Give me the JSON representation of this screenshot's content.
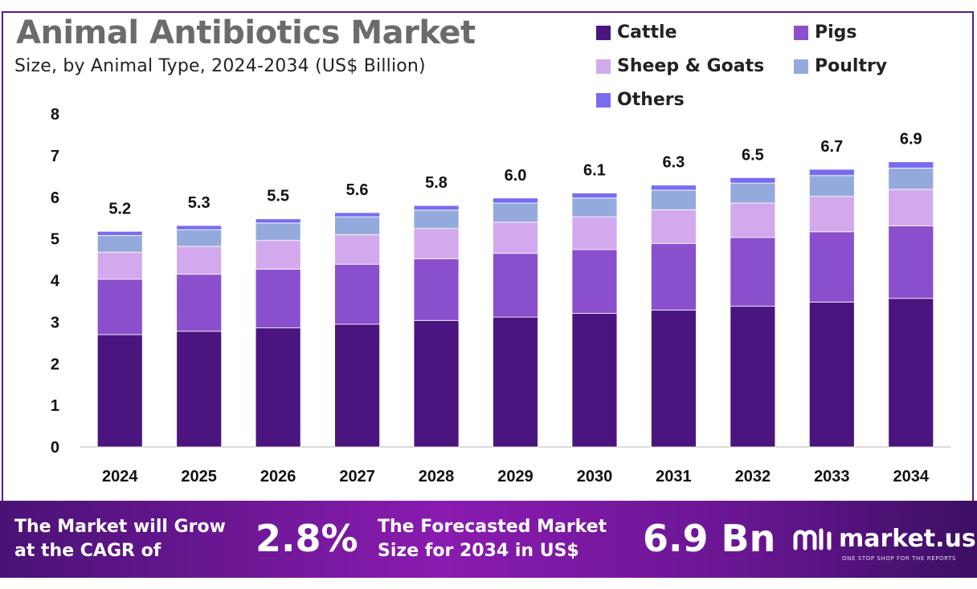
{
  "title": "Animal Antibiotics Market",
  "subtitle": "Size, by Animal Type, 2024-2034 (US$ Billion)",
  "colors": {
    "cattle": "#4b157f",
    "pigs": "#8a4fcc",
    "sheep_goats": "#d3a9ee",
    "poultry": "#94aadc",
    "others": "#7a6cf0",
    "footer_dark": "#4a1275",
    "footer_light": "#8a1bb0"
  },
  "chart_data": {
    "type": "bar",
    "stacked": true,
    "title": "Animal Antibiotics Market",
    "subtitle": "Size, by Animal Type, 2024-2034 (US$ Billion)",
    "xlabel": "",
    "ylabel": "",
    "ylim": [
      0,
      8
    ],
    "yticks": [
      "0",
      "1",
      "2",
      "3",
      "4",
      "5",
      "6",
      "7",
      "8"
    ],
    "grid": false,
    "legend_position": "top-right",
    "categories": [
      "2024",
      "2025",
      "2026",
      "2027",
      "2028",
      "2029",
      "2030",
      "2031",
      "2032",
      "2033",
      "2034"
    ],
    "series": [
      {
        "name": "Cattle",
        "color_key": "cattle",
        "values": [
          2.7,
          2.78,
          2.86,
          2.95,
          3.04,
          3.12,
          3.21,
          3.29,
          3.38,
          3.48,
          3.57
        ]
      },
      {
        "name": "Pigs",
        "color_key": "pigs",
        "values": [
          1.33,
          1.37,
          1.41,
          1.44,
          1.48,
          1.53,
          1.53,
          1.6,
          1.65,
          1.69,
          1.74
        ]
      },
      {
        "name": "Sheep & Goats",
        "color_key": "sheep_goats",
        "values": [
          0.65,
          0.67,
          0.69,
          0.71,
          0.73,
          0.75,
          0.79,
          0.81,
          0.83,
          0.85,
          0.88
        ]
      },
      {
        "name": "Poultry",
        "color_key": "poultry",
        "values": [
          0.4,
          0.4,
          0.42,
          0.43,
          0.44,
          0.46,
          0.45,
          0.47,
          0.48,
          0.5,
          0.51
        ]
      },
      {
        "name": "Others",
        "color_key": "others",
        "values": [
          0.1,
          0.1,
          0.1,
          0.1,
          0.11,
          0.12,
          0.12,
          0.12,
          0.13,
          0.15,
          0.15
        ]
      }
    ],
    "totals": [
      "5.2",
      "5.3",
      "5.5",
      "5.6",
      "5.8",
      "6.0",
      "6.1",
      "6.3",
      "6.5",
      "6.7",
      "6.9"
    ]
  },
  "footer": {
    "cagr_text_line1": "The Market will Grow",
    "cagr_text_line2": "at the CAGR of",
    "cagr_value": "2.8%",
    "forecast_text_line1": "The Forecasted Market",
    "forecast_text_line2": "Size for 2034 in US$",
    "forecast_value": "6.9 Bn",
    "brand_name": "market.us",
    "brand_tagline": "ONE STOP SHOP FOR THE REPORTS"
  }
}
